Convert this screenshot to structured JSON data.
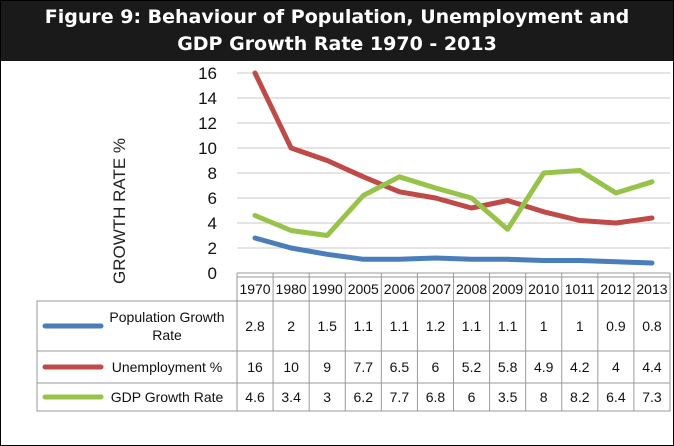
{
  "figure": {
    "title_line1": "Figure 9: Behaviour of Population, Unemployment and",
    "title_line2": "GDP Growth Rate 1970 - 2013"
  },
  "chart_data": {
    "type": "line",
    "title": "Figure 9: Behaviour of Population, Unemployment and GDP Growth Rate 1970 - 2013",
    "ylabel": "GROWTH RATE %",
    "xlabel": "",
    "ylim": [
      0,
      16
    ],
    "yticks": [
      0,
      2,
      4,
      6,
      8,
      10,
      12,
      14,
      16
    ],
    "grid": true,
    "legend": "data-table",
    "categories": [
      "1970",
      "1980",
      "1990",
      "2005",
      "2006",
      "2007",
      "2008",
      "2009",
      "2010",
      "1011",
      "2012",
      "2013"
    ],
    "series": [
      {
        "name": "Population Growth Rate",
        "color": "#4a7ebb",
        "values": [
          2.8,
          2,
          1.5,
          1.1,
          1.1,
          1.2,
          1.1,
          1.1,
          1,
          1,
          0.9,
          0.8
        ],
        "labels": [
          "2.8",
          "2",
          "1.5",
          "1.1",
          "1.1",
          "1.2",
          "1.1",
          "1.1",
          "1",
          "1",
          "0.9",
          "0.8"
        ]
      },
      {
        "name": "Unemployment %",
        "color": "#be4b48",
        "values": [
          16,
          10,
          9,
          7.7,
          6.5,
          6,
          5.2,
          5.8,
          4.9,
          4.2,
          4,
          4.4
        ],
        "labels": [
          "16",
          "10",
          "9",
          "7.7",
          "6.5",
          "6",
          "5.2",
          "5.8",
          "4.9",
          "4.2",
          "4",
          "4.4"
        ]
      },
      {
        "name": "GDP Growth Rate",
        "color": "#98c34a",
        "values": [
          4.6,
          3.4,
          3,
          6.2,
          7.7,
          6.8,
          6,
          3.5,
          8,
          8.2,
          6.4,
          7.3
        ],
        "labels": [
          "4.6",
          "3.4",
          "3",
          "6.2",
          "7.7",
          "6.8",
          "6",
          "3.5",
          "8",
          "8.2",
          "6.4",
          "7.3"
        ]
      }
    ]
  }
}
